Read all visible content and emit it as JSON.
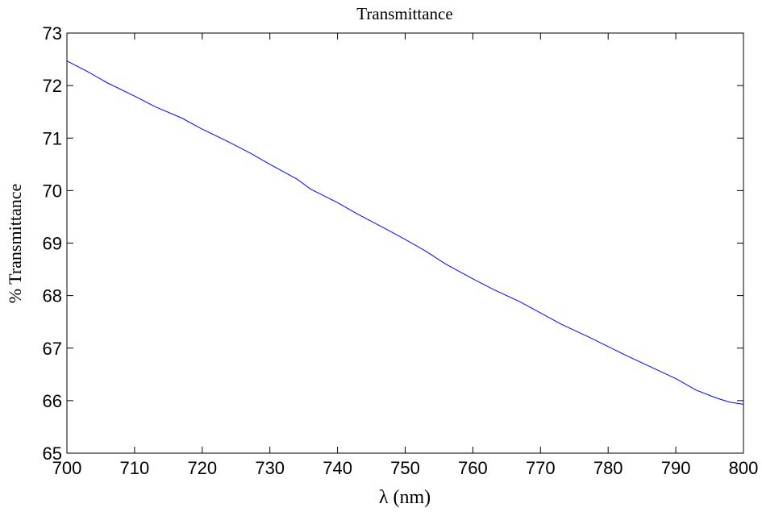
{
  "chart_data": {
    "type": "line",
    "title": "Transmittance",
    "xlabel": "λ (nm)",
    "ylabel": "% Transmittance",
    "xlim": [
      700,
      800
    ],
    "ylim": [
      65,
      73
    ],
    "x_ticks": [
      700,
      710,
      720,
      730,
      740,
      750,
      760,
      770,
      780,
      790,
      800
    ],
    "y_ticks": [
      65,
      66,
      67,
      68,
      69,
      70,
      71,
      72,
      73
    ],
    "grid": false,
    "series": [
      {
        "color": "#0000ff",
        "x": [
          700,
          703,
          706,
          710,
          713,
          717,
          720,
          724,
          727,
          730,
          734,
          736,
          740,
          743,
          747,
          750,
          753,
          756,
          760,
          763,
          767,
          770,
          773,
          777,
          780,
          783,
          787,
          790,
          793,
          796,
          798,
          800
        ],
        "y": [
          72.47,
          72.27,
          72.05,
          71.8,
          71.6,
          71.38,
          71.17,
          70.92,
          70.72,
          70.5,
          70.22,
          70.03,
          69.77,
          69.55,
          69.28,
          69.07,
          68.85,
          68.6,
          68.32,
          68.12,
          67.88,
          67.67,
          67.46,
          67.22,
          67.03,
          66.84,
          66.6,
          66.42,
          66.2,
          66.05,
          65.97,
          65.93
        ]
      }
    ]
  }
}
